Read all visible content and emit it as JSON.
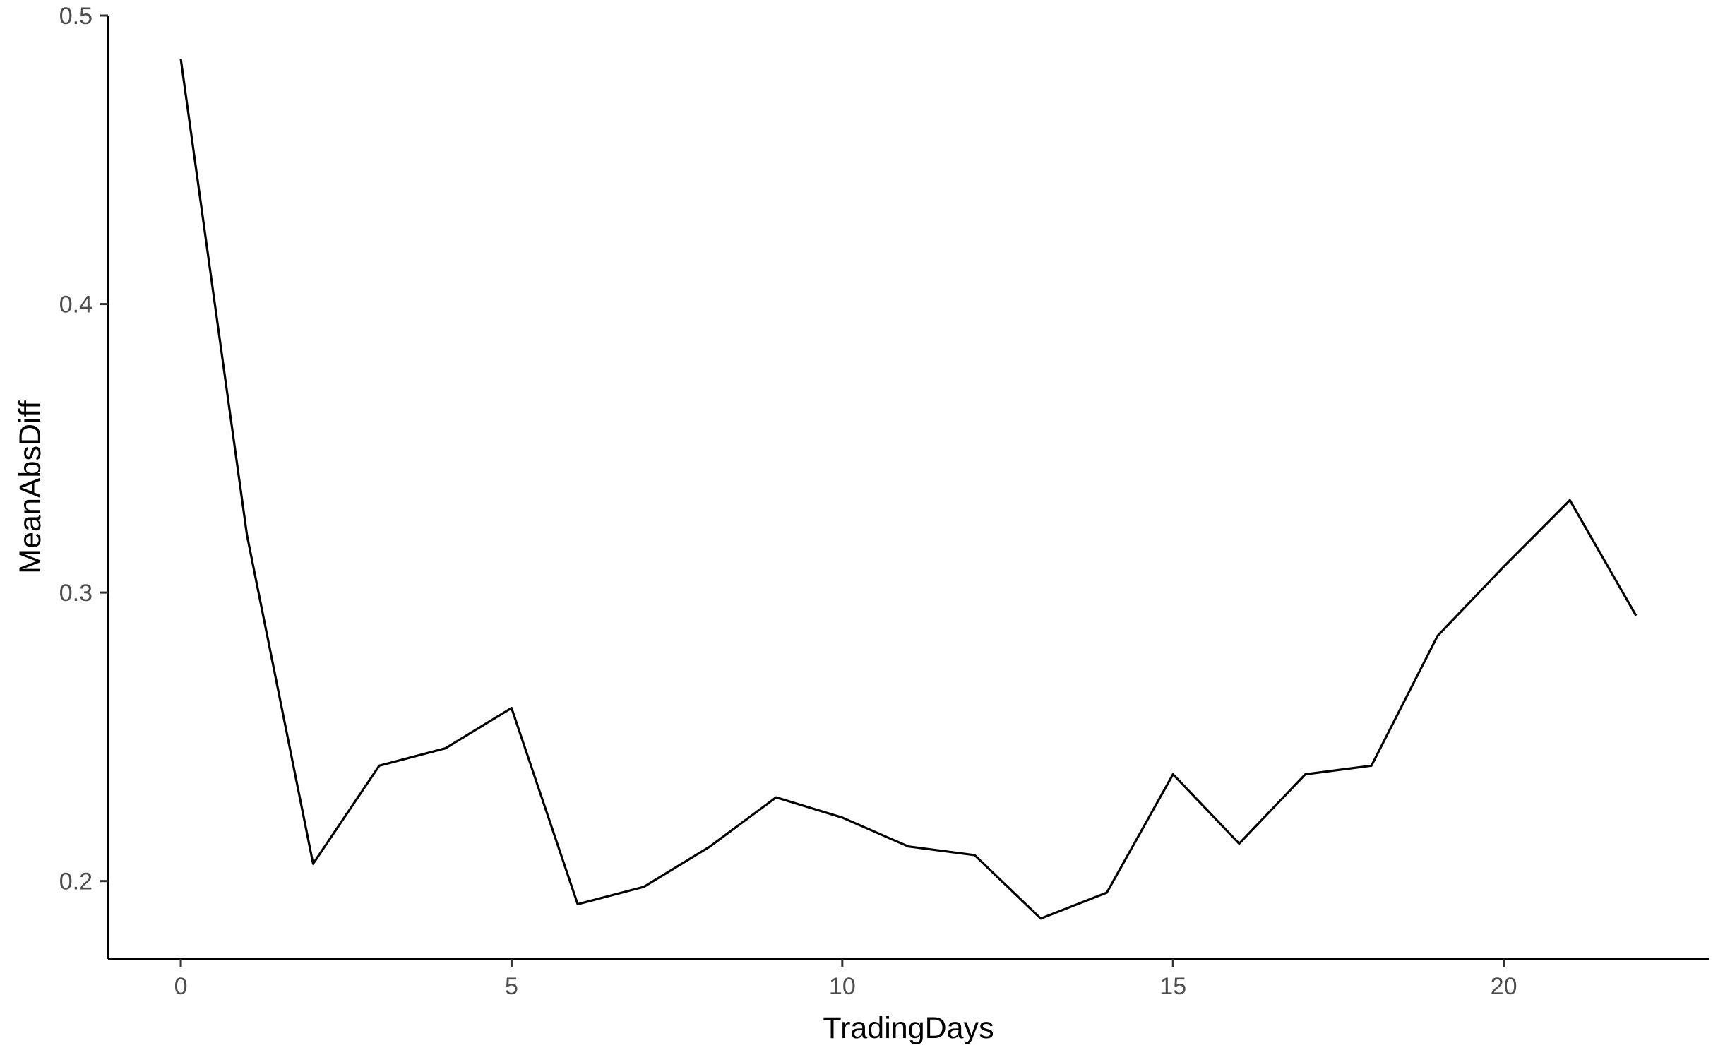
{
  "chart_data": {
    "type": "line",
    "title": "",
    "xlabel": "TradingDays",
    "ylabel": "MeanAbsDiff",
    "xlim": [
      -1.1,
      23.1
    ],
    "ylim": [
      0.173,
      0.5
    ],
    "xticks": [
      0,
      5,
      10,
      15,
      20
    ],
    "xtick_labels": [
      "0",
      "5",
      "10",
      "15",
      "20"
    ],
    "yticks": [
      0.2,
      0.3,
      0.4,
      0.5
    ],
    "ytick_labels": [
      "0.2",
      "0.3",
      "0.4",
      "0.5"
    ],
    "grid": false,
    "legend": "none",
    "series": [
      {
        "color": "#000000",
        "x": [
          0,
          1,
          2,
          3,
          4,
          5,
          6,
          7,
          8,
          9,
          10,
          11,
          12,
          13,
          14,
          15,
          16,
          17,
          18,
          19,
          20,
          21,
          22
        ],
        "y": [
          0.485,
          0.32,
          0.206,
          0.24,
          0.246,
          0.26,
          0.192,
          0.198,
          0.212,
          0.229,
          0.222,
          0.212,
          0.209,
          0.187,
          0.196,
          0.237,
          0.213,
          0.237,
          0.24,
          0.285,
          0.309,
          0.332,
          0.292
        ]
      }
    ]
  }
}
